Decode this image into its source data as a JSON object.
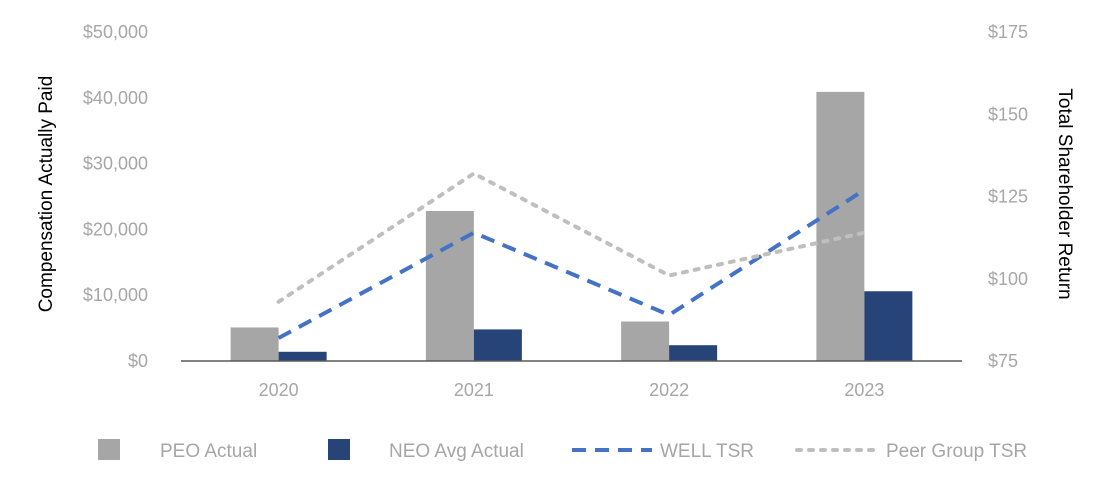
{
  "chart_data": {
    "type": "bar",
    "categories": [
      "2020",
      "2021",
      "2022",
      "2023"
    ],
    "series": [
      {
        "name": "PEO Actual",
        "kind": "bar",
        "axis": "left",
        "color": "#a6a6a6",
        "values": [
          5100,
          22800,
          6000,
          40900
        ]
      },
      {
        "name": "NEO Avg Actual",
        "kind": "bar",
        "axis": "left",
        "color": "#264478",
        "values": [
          1400,
          4800,
          2400,
          10600
        ]
      },
      {
        "name": "WELL TSR",
        "kind": "line",
        "style": "dashed",
        "axis": "right",
        "color": "#4472c4",
        "values": [
          82,
          114,
          89,
          127
        ]
      },
      {
        "name": "Peer Group TSR",
        "kind": "line",
        "style": "dotted",
        "axis": "right",
        "color": "#bfbfbf",
        "values": [
          93,
          132,
          101,
          114
        ]
      }
    ],
    "y_left": {
      "label": "Compensation Actually Paid",
      "lim": [
        0,
        50000
      ],
      "ticks": [
        "$0",
        "$10,000",
        "$20,000",
        "$30,000",
        "$40,000",
        "$50,000"
      ]
    },
    "y_right": {
      "label": "Total Shareholder Return",
      "lim": [
        75,
        175
      ],
      "ticks": [
        "$75",
        "$100",
        "$125",
        "$150",
        "$175"
      ]
    },
    "grid": false,
    "legend": "bottom"
  }
}
